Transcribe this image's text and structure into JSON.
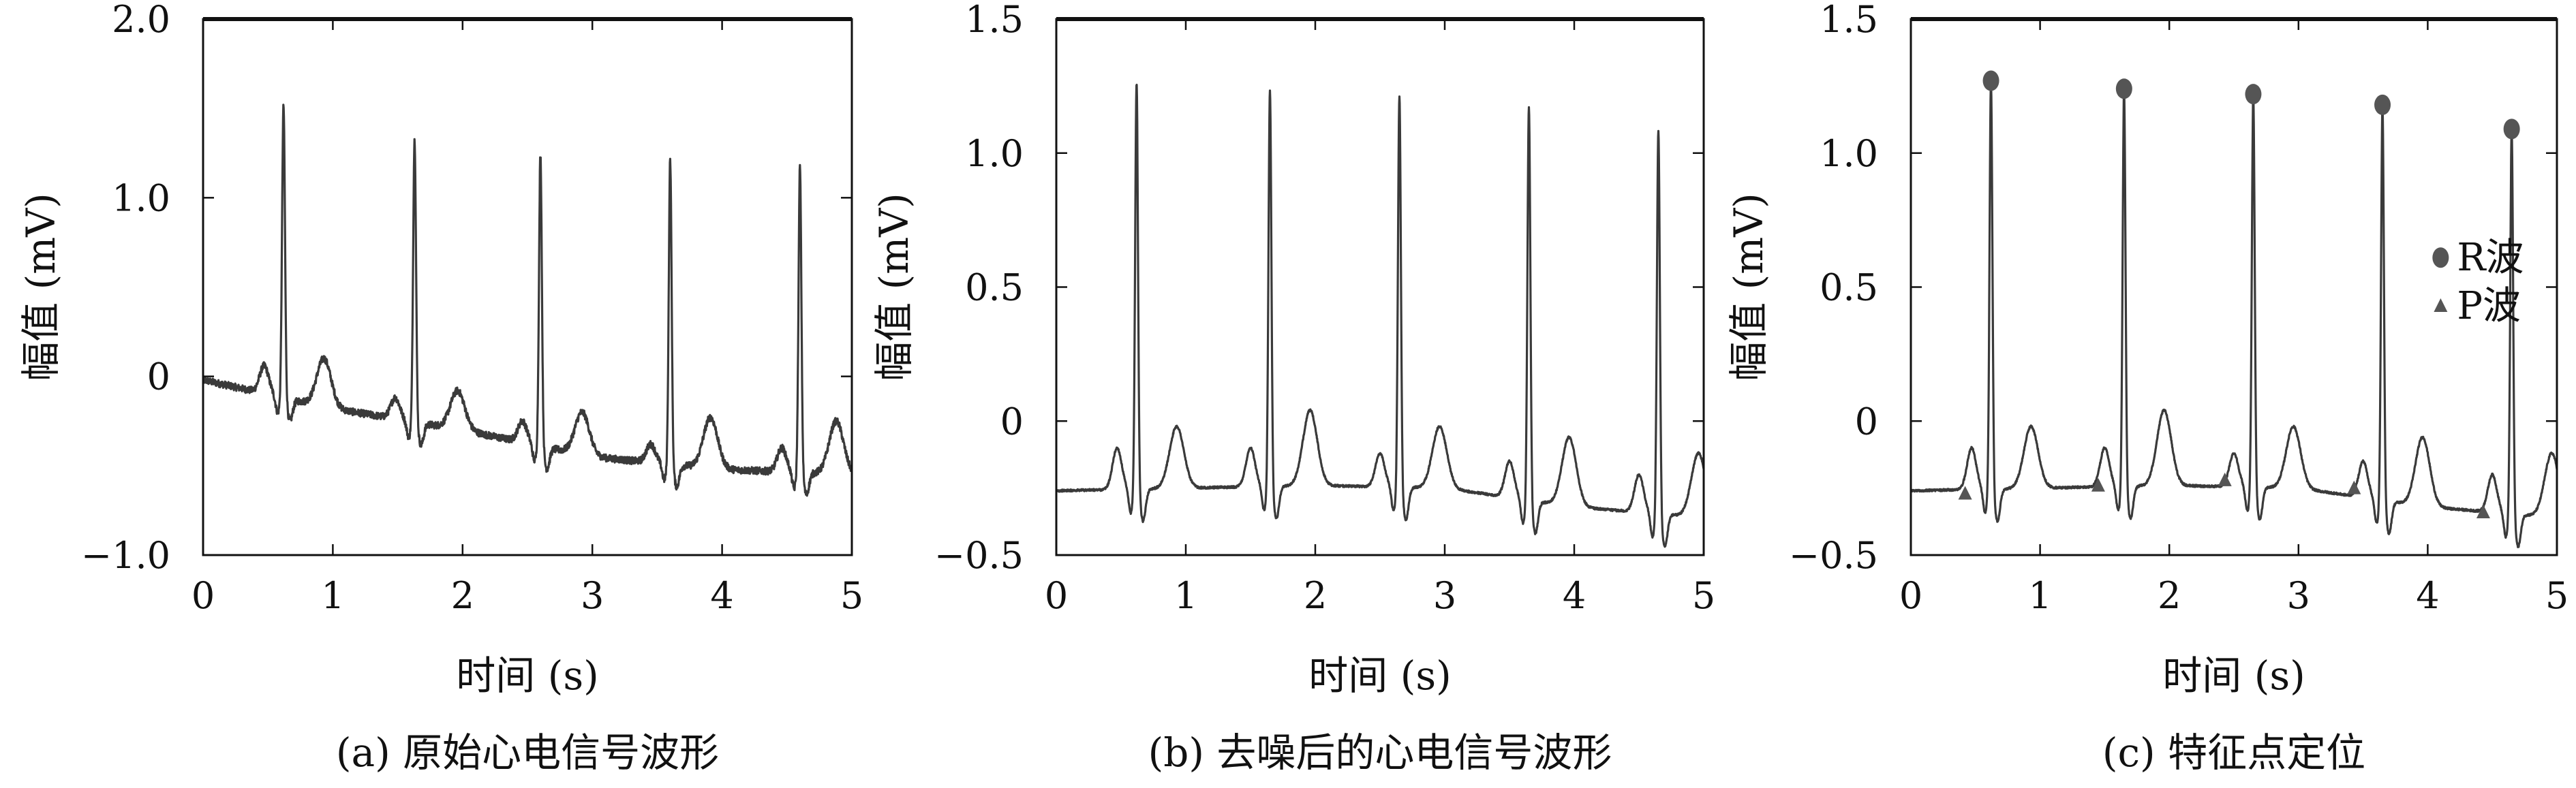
{
  "chart_data": [
    {
      "type": "line",
      "caption": "(a) 原始心电信号波形",
      "xlabel": "时间 (s)",
      "ylabel": "幅值 (mV)",
      "xlim": [
        0,
        5
      ],
      "ylim": [
        -1.0,
        2.0
      ],
      "xticks": [
        0,
        1,
        2,
        3,
        4,
        5
      ],
      "xtick_labels": [
        "0",
        "1",
        "2",
        "3",
        "4",
        "5"
      ],
      "yticks": [
        -1.0,
        0,
        1.0,
        2.0
      ],
      "ytick_labels": [
        "−1.0",
        "0",
        "1.0",
        "2.0"
      ],
      "grid": false,
      "line_color": "#3a3a3a",
      "series": [
        {
          "r_peaks": [
            {
              "t": 0.62,
              "v": 1.52
            },
            {
              "t": 1.63,
              "v": 1.33
            },
            {
              "t": 2.6,
              "v": 1.25
            },
            {
              "t": 3.6,
              "v": 1.22
            },
            {
              "t": 4.6,
              "v": 1.18
            }
          ],
          "p_waves": [
            {
              "t": 0.47,
              "v": 0.06
            },
            {
              "t": 1.48,
              "v": -0.12
            },
            {
              "t": 2.46,
              "v": -0.25
            },
            {
              "t": 3.45,
              "v": -0.38
            },
            {
              "t": 4.46,
              "v": -0.4
            }
          ],
          "t_waves": [
            {
              "t": 0.93,
              "v": 0.1
            },
            {
              "t": 1.96,
              "v": -0.08
            },
            {
              "t": 2.92,
              "v": -0.2
            },
            {
              "t": 3.91,
              "v": -0.23
            },
            {
              "t": 4.88,
              "v": -0.25
            }
          ],
          "baseline": [
            {
              "t": 0.0,
              "v": -0.02
            },
            {
              "t": 1.0,
              "v": -0.18
            },
            {
              "t": 2.0,
              "v": -0.3
            },
            {
              "t": 3.0,
              "v": -0.45
            },
            {
              "t": 4.0,
              "v": -0.52
            },
            {
              "t": 5.0,
              "v": -0.55
            }
          ],
          "noise": 0.02
        }
      ]
    },
    {
      "type": "line",
      "caption": "(b) 去噪后的心电信号波形",
      "xlabel": "时间 (s)",
      "ylabel": "幅值 (mV)",
      "xlim": [
        0,
        5
      ],
      "ylim": [
        -0.5,
        1.5
      ],
      "xticks": [
        0,
        1,
        2,
        3,
        4,
        5
      ],
      "xtick_labels": [
        "0",
        "1",
        "2",
        "3",
        "4",
        "5"
      ],
      "yticks": [
        -0.5,
        0,
        0.5,
        1.0,
        1.5
      ],
      "ytick_labels": [
        "−0.5",
        "0",
        "0.5",
        "1.0",
        "1.5"
      ],
      "grid": false,
      "line_color": "#3a3a3a",
      "series": [
        {
          "r_peaks": [
            {
              "t": 0.62,
              "v": 1.27
            },
            {
              "t": 1.65,
              "v": 1.24
            },
            {
              "t": 2.65,
              "v": 1.22
            },
            {
              "t": 3.65,
              "v": 1.18
            },
            {
              "t": 4.65,
              "v": 1.09
            }
          ],
          "p_waves": [
            {
              "t": 0.47,
              "v": -0.1
            },
            {
              "t": 1.5,
              "v": -0.1
            },
            {
              "t": 2.5,
              "v": -0.12
            },
            {
              "t": 3.5,
              "v": -0.15
            },
            {
              "t": 4.5,
              "v": -0.2
            }
          ],
          "t_waves": [
            {
              "t": 0.93,
              "v": -0.02
            },
            {
              "t": 1.96,
              "v": 0.04
            },
            {
              "t": 2.96,
              "v": -0.02
            },
            {
              "t": 3.96,
              "v": -0.06
            },
            {
              "t": 4.96,
              "v": -0.12
            }
          ],
          "baseline": [
            {
              "t": 0.0,
              "v": -0.26
            },
            {
              "t": 1.0,
              "v": -0.25
            },
            {
              "t": 2.0,
              "v": -0.24
            },
            {
              "t": 3.0,
              "v": -0.25
            },
            {
              "t": 4.0,
              "v": -0.32
            },
            {
              "t": 5.0,
              "v": -0.36
            }
          ],
          "noise": 0.004
        }
      ]
    },
    {
      "type": "line",
      "caption": "(c) 特征点定位",
      "xlabel": "时间 (s)",
      "ylabel": "幅值 (mV)",
      "xlim": [
        0,
        5
      ],
      "ylim": [
        -0.5,
        1.5
      ],
      "xticks": [
        0,
        1,
        2,
        3,
        4,
        5
      ],
      "xtick_labels": [
        "0",
        "1",
        "2",
        "3",
        "4",
        "5"
      ],
      "yticks": [
        -0.5,
        0,
        0.5,
        1.0,
        1.5
      ],
      "ytick_labels": [
        "−0.5",
        "0",
        "0.5",
        "1.0",
        "1.5"
      ],
      "grid": false,
      "legend_position": "right",
      "legend": [
        {
          "label": "R波",
          "marker": "circle"
        },
        {
          "label": "P波",
          "marker": "triangle"
        }
      ],
      "line_color": "#3a3a3a",
      "marker_color": "#555555",
      "series": [
        {
          "r_peaks": [
            {
              "t": 0.62,
              "v": 1.27
            },
            {
              "t": 1.65,
              "v": 1.24
            },
            {
              "t": 2.65,
              "v": 1.22
            },
            {
              "t": 3.65,
              "v": 1.18
            },
            {
              "t": 4.65,
              "v": 1.09
            }
          ],
          "p_waves": [
            {
              "t": 0.47,
              "v": -0.1
            },
            {
              "t": 1.5,
              "v": -0.1
            },
            {
              "t": 2.5,
              "v": -0.12
            },
            {
              "t": 3.5,
              "v": -0.15
            },
            {
              "t": 4.5,
              "v": -0.2
            }
          ],
          "t_waves": [
            {
              "t": 0.93,
              "v": -0.02
            },
            {
              "t": 1.96,
              "v": 0.04
            },
            {
              "t": 2.96,
              "v": -0.02
            },
            {
              "t": 3.96,
              "v": -0.06
            },
            {
              "t": 4.96,
              "v": -0.12
            }
          ],
          "baseline": [
            {
              "t": 0.0,
              "v": -0.26
            },
            {
              "t": 1.0,
              "v": -0.25
            },
            {
              "t": 2.0,
              "v": -0.24
            },
            {
              "t": 3.0,
              "v": -0.25
            },
            {
              "t": 4.0,
              "v": -0.32
            },
            {
              "t": 5.0,
              "v": -0.36
            }
          ],
          "noise": 0.004
        }
      ],
      "markers": {
        "r": [
          {
            "t": 0.62,
            "v": 1.27
          },
          {
            "t": 1.65,
            "v": 1.24
          },
          {
            "t": 2.65,
            "v": 1.22
          },
          {
            "t": 3.65,
            "v": 1.18
          },
          {
            "t": 4.65,
            "v": 1.09
          }
        ],
        "p": [
          {
            "t": 0.42,
            "v": -0.27
          },
          {
            "t": 1.45,
            "v": -0.24
          },
          {
            "t": 2.43,
            "v": -0.22
          },
          {
            "t": 3.43,
            "v": -0.25
          },
          {
            "t": 4.43,
            "v": -0.34
          }
        ]
      }
    }
  ]
}
